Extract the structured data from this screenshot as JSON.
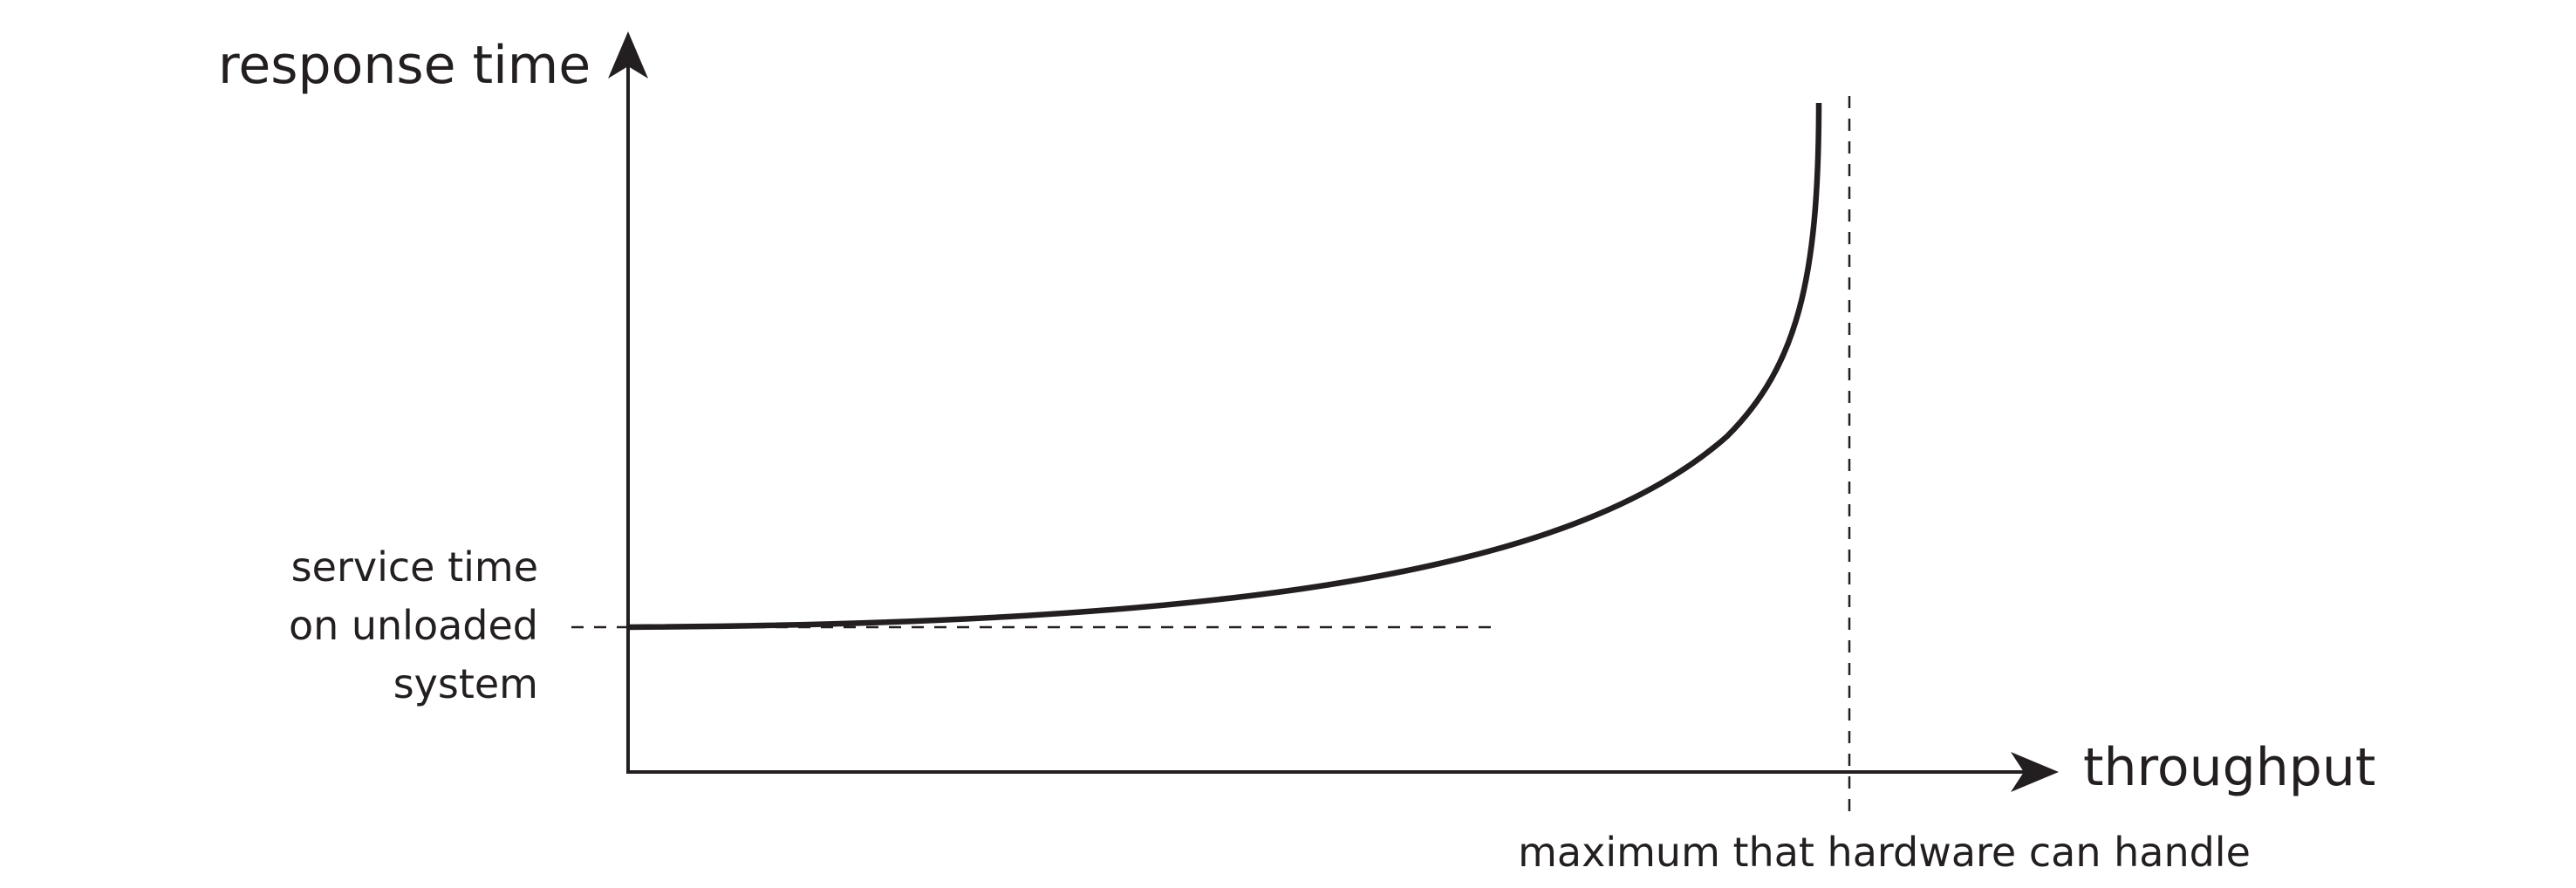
{
  "axes": {
    "y_label": "response time",
    "x_label": "throughput"
  },
  "annotations": {
    "service_time_lines": [
      "service time",
      "on unloaded",
      "system"
    ],
    "max_hardware": "maximum that hardware can handle"
  },
  "colors": {
    "ink": "#231f20",
    "background": "#ffffff"
  }
}
